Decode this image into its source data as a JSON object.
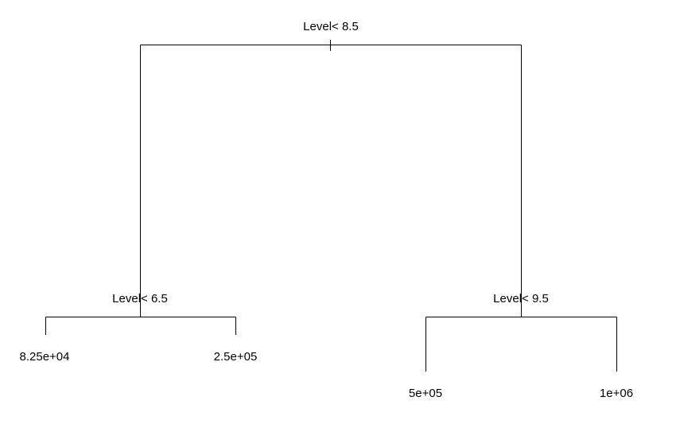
{
  "tree": {
    "root": {
      "split": "Level< 8.5"
    },
    "left": {
      "split": "Level< 6.5"
    },
    "right": {
      "split": "Level< 9.5"
    },
    "leaves": [
      "8.25e+04",
      "2.5e+05",
      "5e+05",
      "1e+06"
    ]
  }
}
